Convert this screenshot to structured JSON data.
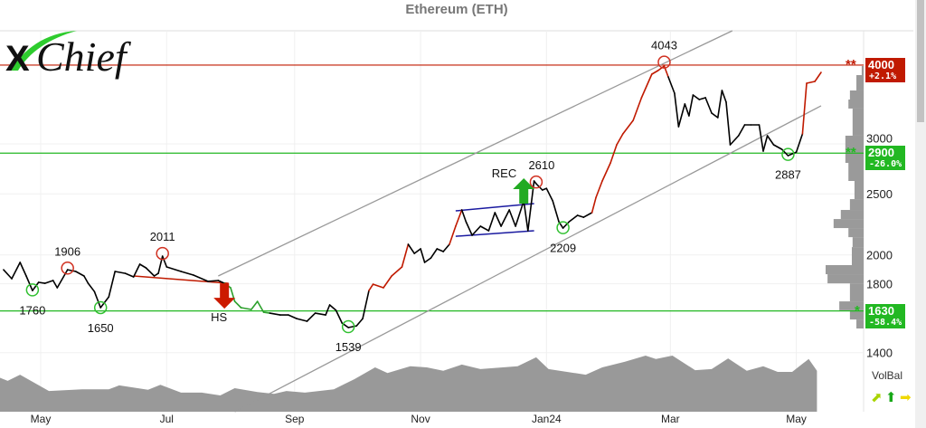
{
  "chart_data": {
    "type": "line",
    "title": "Ethereum (ETH)",
    "y_scale": "log",
    "ylim": [
      1220,
      4900
    ],
    "xlim": [
      "2023-04-11",
      "2024-05-20"
    ],
    "grid": true,
    "y_ticks": [
      3000,
      2500,
      2000,
      1800,
      1400
    ],
    "x_ticks": [
      {
        "label": "May",
        "date": "2023-05-01"
      },
      {
        "label": "Jul",
        "date": "2023-07-01"
      },
      {
        "label": "Sep",
        "date": "2023-09-01"
      },
      {
        "label": "Nov",
        "date": "2023-11-01"
      },
      {
        "label": "Jan24",
        "date": "2024-01-01"
      },
      {
        "label": "Mar",
        "date": "2024-03-01"
      },
      {
        "label": "May",
        "date": "2024-05-01"
      }
    ],
    "price": {
      "dates": [
        "2023-04-13",
        "2023-04-17",
        "2023-04-21",
        "2023-04-24",
        "2023-04-27",
        "2023-04-30",
        "2023-05-03",
        "2023-05-07",
        "2023-05-09",
        "2023-05-14",
        "2023-05-18",
        "2023-05-22",
        "2023-05-24",
        "2023-05-27",
        "2023-05-30",
        "2023-06-03",
        "2023-06-06",
        "2023-06-11",
        "2023-06-15",
        "2023-06-18",
        "2023-06-21",
        "2023-06-25",
        "2023-06-27",
        "2023-06-29",
        "2023-07-01",
        "2023-07-08",
        "2023-07-14",
        "2023-07-21",
        "2023-07-26",
        "2023-07-29",
        "2023-08-01",
        "2023-08-03",
        "2023-08-06",
        "2023-08-11",
        "2023-08-14",
        "2023-08-17",
        "2023-08-20",
        "2023-08-25",
        "2023-08-29",
        "2023-09-02",
        "2023-09-07",
        "2023-09-11",
        "2023-09-16",
        "2023-09-18",
        "2023-09-21",
        "2023-09-24",
        "2023-09-27",
        "2023-10-01",
        "2023-10-04",
        "2023-10-07",
        "2023-10-09",
        "2023-10-14",
        "2023-10-18",
        "2023-10-23",
        "2023-10-26",
        "2023-10-29",
        "2023-11-01",
        "2023-11-03",
        "2023-11-06",
        "2023-11-09",
        "2023-11-12",
        "2023-11-15",
        "2023-11-18",
        "2023-11-21",
        "2023-11-23",
        "2023-11-26",
        "2023-11-30",
        "2023-12-04",
        "2023-12-07",
        "2023-12-10",
        "2023-12-14",
        "2023-12-17",
        "2023-12-21",
        "2023-12-23",
        "2023-12-26",
        "2023-12-27",
        "2023-12-30",
        "2024-01-01",
        "2024-01-04",
        "2024-01-07",
        "2024-01-09",
        "2024-01-12",
        "2024-01-16",
        "2024-01-19",
        "2024-01-23",
        "2024-01-25",
        "2024-01-28",
        "2024-02-01",
        "2024-02-04",
        "2024-02-07",
        "2024-02-12",
        "2024-02-16",
        "2024-02-21",
        "2024-02-24",
        "2024-02-27",
        "2024-02-29",
        "2024-03-03",
        "2024-03-05",
        "2024-03-08",
        "2024-03-10",
        "2024-03-12",
        "2024-03-15",
        "2024-03-18",
        "2024-03-21",
        "2024-03-24",
        "2024-03-26",
        "2024-03-28",
        "2024-03-30",
        "2024-04-03",
        "2024-04-06",
        "2024-04-09",
        "2024-04-13",
        "2024-04-15",
        "2024-04-17",
        "2024-04-20",
        "2024-04-24",
        "2024-04-27",
        "2024-05-01",
        "2024-05-04",
        "2024-05-06",
        "2024-05-10",
        "2024-05-13"
      ],
      "values": [
        1895,
        1834,
        1946,
        1852,
        1756,
        1810,
        1803,
        1822,
        1774,
        1895,
        1883,
        1852,
        1803,
        1750,
        1650,
        1716,
        1883,
        1870,
        1846,
        1933,
        1908,
        1852,
        1870,
        1991,
        1914,
        1883,
        1858,
        1816,
        1822,
        1803,
        1774,
        1688,
        1650,
        1639,
        1688,
        1622,
        1617,
        1606,
        1606,
        1585,
        1570,
        1617,
        1606,
        1666,
        1634,
        1559,
        1534,
        1544,
        1585,
        1756,
        1797,
        1774,
        1852,
        1914,
        2079,
        2011,
        2045,
        1946,
        1978,
        2045,
        2025,
        2079,
        2221,
        2357,
        2258,
        2149,
        2221,
        2185,
        2334,
        2221,
        2357,
        2221,
        2436,
        2185,
        2620,
        2594,
        2535,
        2550,
        2436,
        2258,
        2206,
        2258,
        2311,
        2295,
        2334,
        2468,
        2620,
        2799,
        2990,
        3111,
        3269,
        3551,
        3869,
        3921,
        3986,
        3831,
        3610,
        3194,
        3470,
        3324,
        3586,
        3527,
        3551,
        3357,
        3302,
        3646,
        3493,
        2990,
        3091,
        3216,
        3216,
        3216,
        2922,
        3091,
        2990,
        2941,
        2874,
        2911,
        3111,
        3743,
        3768,
        3895
      ]
    },
    "trend_colors": {
      "neutral": "#000000",
      "up": "#c01a00",
      "down": "#2ca02c"
    },
    "trend_ranges": [
      {
        "trend": "up",
        "from": "2023-10-09",
        "to": "2023-10-26"
      },
      {
        "trend": "up",
        "from": "2023-11-18",
        "to": "2023-11-21"
      },
      {
        "trend": "down",
        "from": "2023-08-01",
        "to": "2023-08-20"
      },
      {
        "trend": "up",
        "from": "2024-01-25",
        "to": "2024-02-29"
      },
      {
        "trend": "up",
        "from": "2024-05-06",
        "to": "2024-05-13"
      }
    ],
    "extremes": [
      {
        "label": "1760",
        "date": "2023-04-27",
        "price": 1760,
        "kind": "low"
      },
      {
        "label": "1906",
        "date": "2023-05-14",
        "price": 1906,
        "kind": "high"
      },
      {
        "label": "1650",
        "date": "2023-05-30",
        "price": 1650,
        "kind": "low"
      },
      {
        "label": "2011",
        "date": "2023-06-29",
        "price": 2011,
        "kind": "high"
      },
      {
        "label": "1539",
        "date": "2023-09-27",
        "price": 1539,
        "kind": "low"
      },
      {
        "label": "2610",
        "date": "2023-12-27",
        "price": 2610,
        "kind": "high"
      },
      {
        "label": "2209",
        "date": "2024-01-09",
        "price": 2209,
        "kind": "low"
      },
      {
        "label": "4043",
        "date": "2024-02-27",
        "price": 4043,
        "kind": "high"
      },
      {
        "label": "2887",
        "date": "2024-04-27",
        "price": 2887,
        "kind": "low"
      }
    ],
    "channel": [
      {
        "from": {
          "date": "2023-07-26",
          "price": 1852
        },
        "to": {
          "date": "2024-03-31",
          "price": 4534
        }
      },
      {
        "from": {
          "date": "2023-08-03",
          "price": 1128
        },
        "to": {
          "date": "2024-05-13",
          "price": 3447
        }
      }
    ],
    "patterns": [
      {
        "label": "HS",
        "direction": "down",
        "color": "#c01a00",
        "neckline": {
          "from": {
            "date": "2023-06-15",
            "price": 1852
          },
          "to": {
            "date": "2023-07-31",
            "price": 1803
          }
        },
        "arrow_date": "2023-07-29"
      },
      {
        "label": "REC",
        "direction": "up",
        "color": "#22aa22",
        "box_color": "#1a1aa0",
        "top": {
          "from": {
            "date": "2023-11-18",
            "price": 2349
          },
          "to": {
            "date": "2023-12-26",
            "price": 2412
          }
        },
        "bottom": {
          "from": {
            "date": "2023-11-18",
            "price": 2141
          },
          "to": {
            "date": "2023-12-26",
            "price": 2185
          }
        },
        "arrow_date": "2023-12-21"
      }
    ],
    "levels": [
      {
        "price": "4000",
        "change": "+2.1%",
        "color": "#c01a00",
        "stars": "**"
      },
      {
        "price": "2900",
        "change": "-26.0%",
        "color": "#22b822",
        "stars": "**"
      },
      {
        "price": "1630",
        "change": "-58.4%",
        "color": "#22b822",
        "stars": "*"
      }
    ],
    "volume_profile": [
      {
        "from": 3856,
        "to": 3986,
        "vol": 0.05
      },
      {
        "from": 3646,
        "to": 3856,
        "vol": 0.19
      },
      {
        "from": 3527,
        "to": 3646,
        "vol": 0.36
      },
      {
        "from": 3413,
        "to": 3527,
        "vol": 0.4
      },
      {
        "from": 3091,
        "to": 3413,
        "vol": 0.29
      },
      {
        "from": 2799,
        "to": 3091,
        "vol": 0.48
      },
      {
        "from": 2620,
        "to": 2799,
        "vol": 0.4
      },
      {
        "from": 2452,
        "to": 2620,
        "vol": 0.24
      },
      {
        "from": 2357,
        "to": 2452,
        "vol": 0.36
      },
      {
        "from": 2280,
        "to": 2357,
        "vol": 0.6
      },
      {
        "from": 2206,
        "to": 2280,
        "vol": 0.79
      },
      {
        "from": 2134,
        "to": 2206,
        "vol": 0.4
      },
      {
        "from": 2058,
        "to": 2134,
        "vol": 0.29
      },
      {
        "from": 1927,
        "to": 2058,
        "vol": 0.31
      },
      {
        "from": 1864,
        "to": 1927,
        "vol": 1.0
      },
      {
        "from": 1803,
        "to": 1864,
        "vol": 0.95
      },
      {
        "from": 1688,
        "to": 1803,
        "vol": 0.36
      },
      {
        "from": 1634,
        "to": 1688,
        "vol": 0.64
      },
      {
        "from": 1580,
        "to": 1634,
        "vol": 0.36
      },
      {
        "from": 1529,
        "to": 1580,
        "vol": 0.19
      }
    ],
    "volbal": {
      "label": "VolBal",
      "dates": [
        "2023-04-11",
        "2023-04-15",
        "2023-04-21",
        "2023-05-05",
        "2023-05-21",
        "2023-06-03",
        "2023-06-08",
        "2023-06-22",
        "2023-06-28",
        "2023-07-08",
        "2023-07-18",
        "2023-07-27",
        "2023-08-03",
        "2023-08-14",
        "2023-08-22",
        "2023-08-28",
        "2023-09-06",
        "2023-09-20",
        "2023-09-30",
        "2023-10-10",
        "2023-10-16",
        "2023-10-27",
        "2023-11-04",
        "2023-11-12",
        "2023-11-21",
        "2023-11-30",
        "2023-12-18",
        "2023-12-27",
        "2024-01-02",
        "2024-01-20",
        "2024-01-28",
        "2024-02-08",
        "2024-02-18",
        "2024-02-23",
        "2024-03-02",
        "2024-03-13",
        "2024-03-21",
        "2024-03-29",
        "2024-04-07",
        "2024-04-15",
        "2024-04-22",
        "2024-04-29",
        "2024-05-07",
        "2024-05-11"
      ],
      "levels": [
        0.61,
        0.55,
        0.66,
        0.37,
        0.4,
        0.4,
        0.47,
        0.39,
        0.48,
        0.34,
        0.34,
        0.29,
        0.42,
        0.35,
        0.32,
        0.37,
        0.34,
        0.4,
        0.58,
        0.79,
        0.69,
        0.81,
        0.79,
        0.73,
        0.84,
        0.76,
        0.81,
        0.97,
        0.76,
        0.66,
        0.79,
        0.89,
        1.0,
        0.94,
        1.0,
        0.74,
        0.76,
        0.95,
        0.73,
        0.81,
        0.71,
        0.71,
        0.94,
        0.73
      ],
      "signals": [
        {
          "icon": "arrow-up-right-icon",
          "color": "#a8d400"
        },
        {
          "icon": "arrow-up-icon",
          "color": "#18a818"
        },
        {
          "icon": "arrow-right-icon",
          "color": "#f0d800"
        }
      ]
    }
  },
  "logo": {
    "text_x": "X",
    "text_rest": "Chief"
  }
}
